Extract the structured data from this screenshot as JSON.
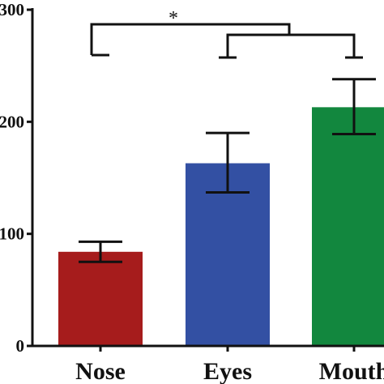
{
  "chart_data": {
    "type": "bar",
    "categories": [
      "Nose",
      "Eyes",
      "Mouth"
    ],
    "values": [
      84,
      163,
      213
    ],
    "error_low": [
      75,
      137,
      189
    ],
    "error_high": [
      93,
      190,
      238
    ],
    "colors": [
      "#a61c1c",
      "#3350a3",
      "#12873e"
    ],
    "ylim": [
      0,
      300
    ],
    "yticks": [
      0,
      100,
      200,
      300
    ],
    "ytick_labels": [
      "0",
      "100",
      "200",
      "300"
    ],
    "title": "",
    "xlabel": "",
    "ylabel": "",
    "grid": false,
    "legend": "none",
    "annotations": [
      {
        "text": "*",
        "from": "Nose",
        "to": "Eyes-Mouth group"
      }
    ]
  }
}
